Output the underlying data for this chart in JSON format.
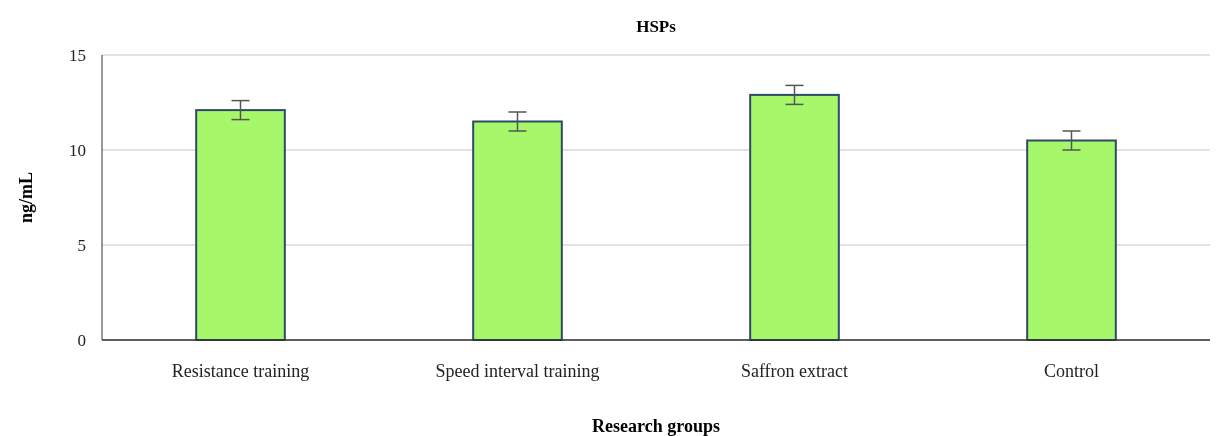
{
  "chart_data": {
    "type": "bar",
    "title": "HSPs",
    "xlabel": "Research groups",
    "ylabel": "ng/mL",
    "categories": [
      "Resistance training",
      "Speed interval training",
      "Saffron extract",
      "Control"
    ],
    "values": [
      12.1,
      11.5,
      12.9,
      10.5
    ],
    "errors": [
      0.5,
      0.5,
      0.5,
      0.5
    ],
    "color": "#a6f76a",
    "ylim": [
      0,
      15
    ],
    "yticks": [
      0,
      5,
      10,
      15
    ],
    "grid": "y"
  }
}
